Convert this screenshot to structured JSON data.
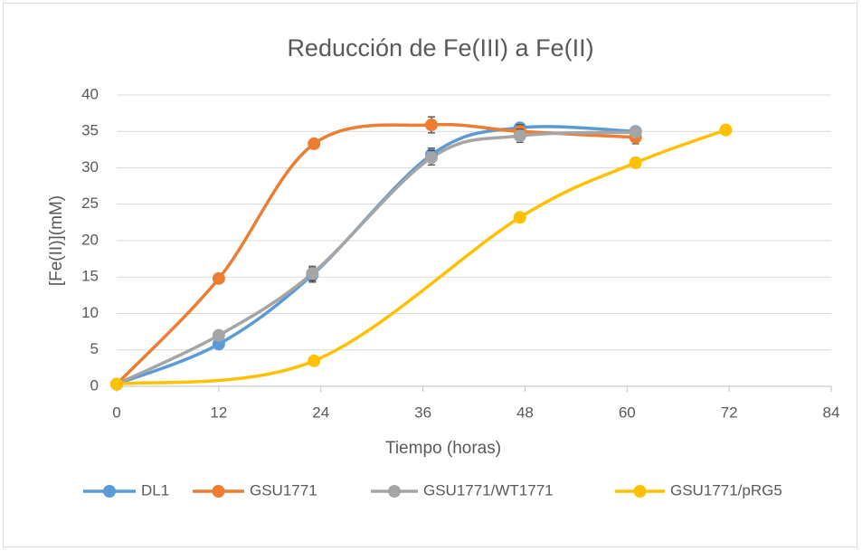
{
  "chart_data": {
    "type": "scatter-smooth",
    "title": "Reducción de Fe(III) a Fe(II)",
    "x_label": "Tiempo (horas)",
    "y_label": "[Fe(II)](mM)",
    "xlim": [
      0,
      84
    ],
    "xticks": [
      0,
      12,
      24,
      36,
      48,
      60,
      72,
      84
    ],
    "ylim": [
      0,
      40
    ],
    "yticks": [
      0,
      5,
      10,
      15,
      20,
      25,
      30,
      35,
      40
    ],
    "grid": true,
    "legend": "bottom",
    "series": [
      {
        "name": "DL1",
        "color": "#5b9bd5",
        "x": [
          0,
          12,
          23,
          37,
          47.4,
          61
        ],
        "values": [
          0.3,
          5.8,
          15.3,
          31.8,
          35.5,
          35.0
        ],
        "errors": [
          0,
          0.3,
          1.0,
          0.9,
          0.6,
          0.4
        ]
      },
      {
        "name": "GSU1771",
        "color": "#ed7d31",
        "x": [
          0,
          12,
          23.2,
          37,
          47.4,
          61
        ],
        "values": [
          0.3,
          14.8,
          33.3,
          35.9,
          35.0,
          34.2
        ],
        "errors": [
          0,
          0.3,
          0.4,
          1.1,
          0.9,
          0.9
        ]
      },
      {
        "name": "GSU1771/WT1771",
        "color": "#a5a5a5",
        "x": [
          0,
          12,
          23,
          37,
          47.4,
          61
        ],
        "values": [
          0.3,
          7.0,
          15.5,
          31.4,
          34.4,
          34.9
        ],
        "errors": [
          0,
          0.3,
          1.0,
          1.0,
          0.9,
          0.4
        ]
      },
      {
        "name": "GSU1771/pRG5",
        "color": "#ffc000",
        "x": [
          0,
          23.2,
          47.4,
          61,
          71.6
        ],
        "values": [
          0.3,
          3.5,
          23.2,
          30.7,
          35.2
        ],
        "errors": [
          0,
          0,
          0,
          0,
          0
        ]
      }
    ]
  }
}
